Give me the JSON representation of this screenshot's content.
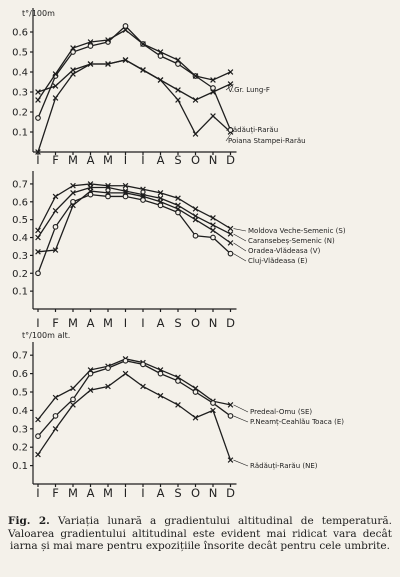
{
  "caption": {
    "label": "Fig. 2.",
    "text": "Variația lunară a gradientului altitudinal de temperatură. Valoarea gradientului altitudinal este evident mai ridicat vara decât iarna și mai mare pentru expozițiile însorite decât pentru cele umbrite."
  },
  "chart_data": [
    {
      "type": "line",
      "unit_label": "t°/100m",
      "categories": [
        "I",
        "F",
        "M",
        "A",
        "M",
        "I",
        "I",
        "A",
        "S",
        "O",
        "N",
        "D"
      ],
      "ylim": [
        0,
        0.7
      ],
      "yticks": [
        0.1,
        0.2,
        0.3,
        0.4,
        0.5,
        0.6
      ],
      "series": [
        {
          "name": "V.Gr. Lung-F",
          "marker": "x",
          "values": [
            0.3,
            0.33,
            0.41,
            0.44,
            0.44,
            0.46,
            0.41,
            0.36,
            0.31,
            0.26,
            0.3,
            0.34
          ]
        },
        {
          "name": "Rădăuți-Rarău",
          "marker": "x",
          "values": [
            0.0,
            0.27,
            0.39,
            0.44,
            0.44,
            0.46,
            0.41,
            0.36,
            0.26,
            0.09,
            0.18,
            0.1
          ]
        },
        {
          "name": "Poiana Stampei-Rarău",
          "marker": "o",
          "values": [
            0.17,
            0.38,
            0.5,
            0.53,
            0.55,
            0.63,
            0.54,
            0.48,
            0.44,
            0.38,
            0.32,
            0.11
          ]
        },
        {
          "name": "",
          "marker": "x",
          "values": [
            0.26,
            0.39,
            0.52,
            0.55,
            0.56,
            0.61,
            0.54,
            0.5,
            0.46,
            0.38,
            0.36,
            0.4
          ]
        }
      ]
    },
    {
      "type": "line",
      "unit_label": "",
      "categories": [
        "I",
        "F",
        "M",
        "A",
        "M",
        "I",
        "I",
        "A",
        "S",
        "O",
        "N",
        "D"
      ],
      "ylim": [
        0,
        0.75
      ],
      "yticks": [
        0.1,
        0.2,
        0.3,
        0.4,
        0.5,
        0.6,
        0.7
      ],
      "series": [
        {
          "name": "Moldova Veche-Semenic (S)",
          "marker": "x",
          "values": [
            0.44,
            0.63,
            0.69,
            0.7,
            0.69,
            0.69,
            0.67,
            0.65,
            0.62,
            0.56,
            0.51,
            0.45
          ]
        },
        {
          "name": "Caransebeș-Semenic (N)",
          "marker": "x",
          "values": [
            0.4,
            0.55,
            0.65,
            0.68,
            0.68,
            0.66,
            0.64,
            0.62,
            0.58,
            0.52,
            0.47,
            0.42
          ]
        },
        {
          "name": "Oradea-Vlădeasa (V)",
          "marker": "x",
          "values": [
            0.32,
            0.33,
            0.58,
            0.66,
            0.65,
            0.65,
            0.63,
            0.6,
            0.56,
            0.5,
            0.44,
            0.37
          ]
        },
        {
          "name": "Cluj-Vlădeasa (E)",
          "marker": "o",
          "values": [
            0.2,
            0.46,
            0.6,
            0.64,
            0.63,
            0.63,
            0.61,
            0.58,
            0.54,
            0.41,
            0.4,
            0.31
          ]
        }
      ]
    },
    {
      "type": "line",
      "unit_label": "t°/100m alt.",
      "categories": [
        "I",
        "F",
        "M",
        "A",
        "M",
        "I",
        "I",
        "A",
        "S",
        "O",
        "N",
        "D"
      ],
      "ylim": [
        0,
        0.75
      ],
      "yticks": [
        0.1,
        0.2,
        0.3,
        0.4,
        0.5,
        0.6,
        0.7
      ],
      "series": [
        {
          "name": "Predeal-Omu (SE)",
          "marker": "x",
          "values": [
            0.35,
            0.47,
            0.52,
            0.62,
            0.64,
            0.68,
            0.66,
            0.62,
            0.58,
            0.52,
            0.45,
            0.43
          ]
        },
        {
          "name": "P.Neamț-Ceahlău Toaca (E)",
          "marker": "o",
          "values": [
            0.26,
            0.37,
            0.46,
            0.6,
            0.63,
            0.67,
            0.65,
            0.6,
            0.56,
            0.5,
            0.44,
            0.37
          ]
        },
        {
          "name": "Rădăuți-Rarău (NE)",
          "marker": "x",
          "values": [
            0.16,
            0.3,
            0.43,
            0.51,
            0.53,
            0.6,
            0.53,
            0.48,
            0.43,
            0.36,
            0.4,
            0.13
          ]
        }
      ]
    }
  ]
}
